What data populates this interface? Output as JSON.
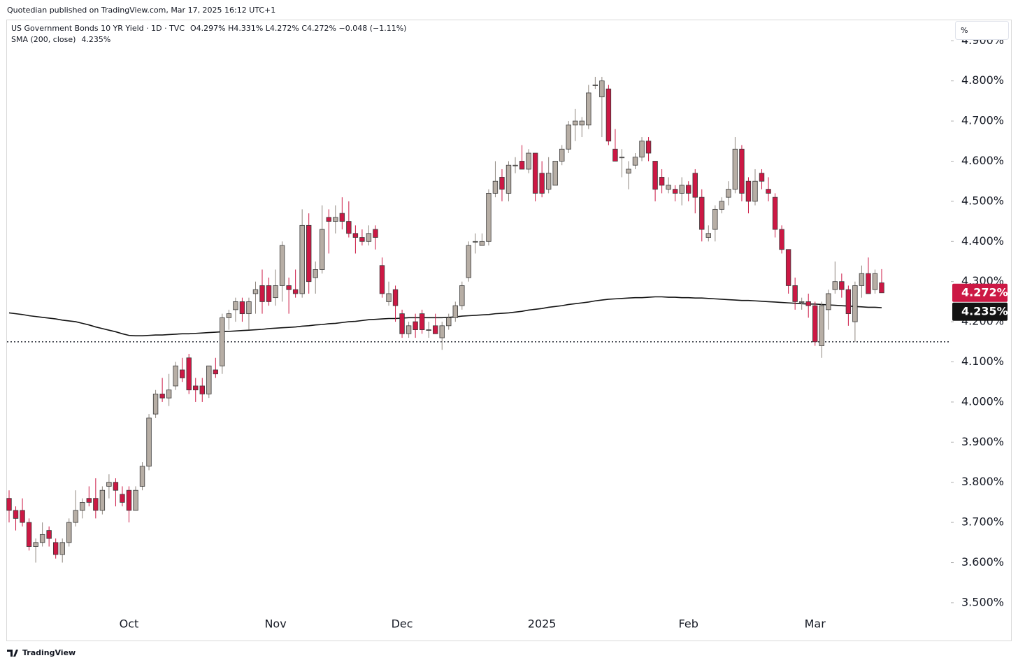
{
  "header": {
    "published": "Quotedian published on TradingView.com, Mar 17, 2025 16:12 UTC+1",
    "ohlc": "O4.297% H4.331% L4.272% C4.272% −0.048 (−1.11%)",
    "unit": "%",
    "footer": "TradingView"
  },
  "chart_data": {
    "type": "candlestick",
    "title": "US Government Bonds 10 YR Yield · 1D · TVC",
    "categories": [
      null,
      null,
      null,
      null,
      null,
      null,
      null,
      null,
      null,
      null,
      null,
      null,
      null,
      null,
      null,
      null,
      null,
      null,
      "Oct",
      null,
      null,
      null,
      null,
      null,
      null,
      null,
      null,
      null,
      null,
      null,
      null,
      null,
      null,
      null,
      null,
      null,
      null,
      null,
      null,
      null,
      "Nov",
      null,
      null,
      null,
      null,
      null,
      null,
      null,
      null,
      null,
      null,
      null,
      null,
      null,
      null,
      null,
      null,
      null,
      null,
      "Dec",
      null,
      null,
      null,
      null,
      null,
      null,
      null,
      null,
      null,
      null,
      null,
      null,
      null,
      null,
      null,
      null,
      null,
      null,
      null,
      null,
      "2025",
      null,
      null,
      null,
      null,
      null,
      null,
      null,
      null,
      null,
      null,
      null,
      null,
      null,
      null,
      null,
      null,
      null,
      null,
      null,
      null,
      null,
      "Feb",
      null,
      null,
      null,
      null,
      null,
      null,
      null,
      null,
      null,
      null,
      null,
      null,
      null,
      null,
      null,
      null,
      null,
      null,
      "Mar",
      null,
      null,
      null,
      null,
      null,
      null,
      null,
      null,
      null,
      null
    ],
    "open": [
      3.76,
      3.73,
      3.73,
      3.7,
      3.64,
      3.65,
      3.68,
      3.65,
      3.62,
      3.65,
      3.7,
      3.73,
      3.76,
      3.76,
      3.73,
      3.79,
      3.8,
      3.77,
      3.78,
      3.73,
      3.79,
      3.84,
      3.97,
      4.02,
      4.01,
      4.04,
      4.08,
      4.11,
      4.04,
      4.04,
      4.02,
      4.08,
      4.09,
      4.21,
      4.23,
      4.25,
      4.22,
      4.27,
      4.29,
      4.29,
      4.26,
      4.29,
      4.29,
      4.28,
      4.27,
      4.44,
      4.31,
      4.33,
      4.46,
      4.45,
      4.47,
      4.45,
      4.42,
      4.41,
      4.4,
      4.43,
      4.34,
      4.25,
      4.28,
      4.22,
      4.17,
      4.2,
      4.22,
      4.18,
      4.19,
      4.16,
      4.19,
      4.21,
      4.24,
      4.31,
      4.4,
      4.39,
      4.4,
      4.52,
      4.56,
      4.52,
      4.59,
      4.6,
      4.58,
      4.62,
      4.57,
      4.53,
      4.54,
      4.6,
      4.63,
      4.69,
      4.69,
      4.69,
      4.79,
      4.76,
      4.78,
      4.63,
      4.61,
      4.57,
      4.59,
      4.61,
      4.65,
      4.6,
      4.56,
      4.53,
      4.53,
      4.52,
      4.54,
      4.57,
      4.51,
      4.41,
      4.43,
      4.48,
      4.51,
      4.53,
      4.63,
      4.55,
      4.5,
      4.57,
      4.53,
      4.51,
      4.43,
      4.38,
      4.29,
      4.25,
      4.25,
      4.24,
      4.14,
      4.23,
      4.28,
      4.3,
      4.28,
      4.2,
      4.29,
      4.32,
      4.28,
      4.297
    ],
    "high": [
      3.78,
      3.74,
      3.76,
      3.71,
      3.66,
      3.7,
      3.69,
      3.66,
      3.66,
      3.71,
      3.78,
      3.76,
      3.79,
      3.81,
      3.79,
      3.82,
      3.81,
      3.79,
      3.79,
      3.79,
      3.85,
      3.97,
      4.03,
      4.06,
      4.07,
      4.1,
      4.11,
      4.12,
      4.06,
      4.06,
      4.09,
      4.11,
      4.22,
      4.23,
      4.26,
      4.26,
      4.26,
      4.3,
      4.33,
      4.31,
      4.33,
      4.4,
      4.31,
      4.33,
      4.48,
      4.47,
      4.35,
      4.49,
      4.48,
      4.49,
      4.51,
      4.5,
      4.44,
      4.43,
      4.44,
      4.44,
      4.36,
      4.3,
      4.29,
      4.23,
      4.2,
      4.22,
      4.23,
      4.2,
      4.22,
      4.2,
      4.22,
      4.25,
      4.3,
      4.4,
      4.42,
      4.42,
      4.53,
      4.6,
      4.58,
      4.6,
      4.61,
      4.64,
      4.63,
      4.62,
      4.6,
      4.61,
      4.6,
      4.64,
      4.7,
      4.73,
      4.71,
      4.79,
      4.81,
      4.81,
      4.79,
      4.68,
      4.63,
      4.6,
      4.62,
      4.66,
      4.66,
      4.6,
      4.58,
      4.56,
      4.54,
      4.56,
      4.55,
      4.58,
      4.53,
      4.44,
      4.49,
      4.51,
      4.55,
      4.66,
      4.64,
      4.56,
      4.58,
      4.58,
      4.56,
      4.52,
      4.44,
      4.38,
      4.31,
      4.26,
      4.27,
      4.25,
      4.25,
      4.28,
      4.35,
      4.32,
      4.29,
      4.3,
      4.34,
      4.36,
      4.33,
      4.331
    ],
    "low": [
      3.7,
      3.68,
      3.69,
      3.63,
      3.6,
      3.64,
      3.64,
      3.61,
      3.6,
      3.64,
      3.69,
      3.71,
      3.74,
      3.71,
      3.72,
      3.76,
      3.74,
      3.74,
      3.7,
      3.73,
      3.78,
      3.83,
      3.96,
      4.0,
      3.99,
      4.03,
      4.05,
      4.02,
      4.0,
      4.0,
      4.01,
      4.06,
      4.07,
      4.18,
      4.2,
      4.2,
      4.18,
      4.22,
      4.22,
      4.24,
      4.24,
      4.25,
      4.22,
      4.26,
      4.26,
      4.27,
      4.27,
      4.32,
      4.37,
      4.42,
      4.43,
      4.41,
      4.37,
      4.39,
      4.39,
      4.38,
      4.26,
      4.24,
      4.2,
      4.16,
      4.16,
      4.16,
      4.17,
      4.16,
      4.17,
      4.13,
      4.18,
      4.2,
      4.23,
      4.3,
      4.37,
      4.39,
      4.39,
      4.51,
      4.5,
      4.5,
      4.57,
      4.58,
      4.57,
      4.5,
      4.51,
      4.52,
      4.54,
      4.59,
      4.62,
      4.65,
      4.66,
      4.68,
      4.78,
      4.66,
      4.64,
      4.6,
      4.56,
      4.53,
      4.58,
      4.6,
      4.6,
      4.5,
      4.52,
      4.52,
      4.5,
      4.49,
      4.5,
      4.47,
      4.4,
      4.4,
      4.4,
      4.47,
      4.49,
      4.52,
      4.5,
      4.47,
      4.49,
      4.53,
      4.5,
      4.41,
      4.37,
      4.27,
      4.23,
      4.23,
      4.21,
      4.14,
      4.11,
      4.18,
      4.27,
      4.26,
      4.19,
      4.15,
      4.26,
      4.27,
      4.27,
      4.272
    ],
    "close": [
      3.73,
      3.71,
      3.7,
      3.64,
      3.65,
      3.67,
      3.66,
      3.62,
      3.65,
      3.7,
      3.73,
      3.75,
      3.75,
      3.73,
      3.78,
      3.8,
      3.78,
      3.75,
      3.73,
      3.78,
      3.84,
      3.96,
      4.02,
      4.01,
      4.03,
      4.09,
      4.06,
      4.03,
      4.03,
      4.02,
      4.09,
      4.07,
      4.21,
      4.22,
      4.25,
      4.22,
      4.25,
      4.28,
      4.25,
      4.25,
      4.29,
      4.39,
      4.28,
      4.27,
      4.44,
      4.3,
      4.33,
      4.43,
      4.45,
      4.46,
      4.45,
      4.42,
      4.41,
      4.4,
      4.42,
      4.41,
      4.27,
      4.27,
      4.24,
      4.17,
      4.19,
      4.18,
      4.18,
      4.18,
      4.17,
      4.19,
      4.21,
      4.24,
      4.29,
      4.39,
      4.4,
      4.4,
      4.52,
      4.55,
      4.53,
      4.59,
      4.59,
      4.58,
      4.62,
      4.52,
      4.52,
      4.57,
      4.6,
      4.63,
      4.69,
      4.7,
      4.7,
      4.77,
      4.79,
      4.8,
      4.65,
      4.6,
      4.61,
      4.58,
      4.61,
      4.65,
      4.62,
      4.53,
      4.54,
      4.54,
      4.52,
      4.54,
      4.52,
      4.51,
      4.43,
      4.42,
      4.48,
      4.5,
      4.53,
      4.63,
      4.52,
      4.5,
      4.55,
      4.55,
      4.52,
      4.43,
      4.38,
      4.29,
      4.25,
      4.25,
      4.24,
      4.15,
      4.24,
      4.27,
      4.3,
      4.28,
      4.22,
      4.29,
      4.32,
      4.27,
      4.32,
      4.272
    ],
    "last_close_label": "4.272%",
    "color_up": "#b7aea5",
    "color_down": "#cc1844",
    "border_color": "#3a3a3a",
    "sma": {
      "name": "SMA (200, close)",
      "color": "#131313",
      "value_label": "4.235%",
      "values": [
        4.222,
        4.22,
        4.218,
        4.215,
        4.213,
        4.211,
        4.209,
        4.207,
        4.204,
        4.202,
        4.2,
        4.196,
        4.192,
        4.187,
        4.183,
        4.179,
        4.175,
        4.17,
        4.166,
        4.165,
        4.165,
        4.166,
        4.167,
        4.167,
        4.168,
        4.169,
        4.17,
        4.17,
        4.171,
        4.172,
        4.173,
        4.174,
        4.175,
        4.176,
        4.177,
        4.178,
        4.179,
        4.18,
        4.181,
        4.183,
        4.184,
        4.185,
        4.186,
        4.187,
        4.189,
        4.19,
        4.192,
        4.193,
        4.195,
        4.196,
        4.198,
        4.2,
        4.201,
        4.203,
        4.205,
        4.206,
        4.207,
        4.208,
        4.208,
        4.209,
        4.21,
        4.21,
        4.21,
        4.21,
        4.21,
        4.21,
        4.211,
        4.212,
        4.214,
        4.215,
        4.216,
        4.217,
        4.218,
        4.22,
        4.221,
        4.222,
        4.224,
        4.226,
        4.229,
        4.231,
        4.233,
        4.236,
        4.238,
        4.24,
        4.243,
        4.245,
        4.247,
        4.249,
        4.252,
        4.254,
        4.256,
        4.257,
        4.258,
        4.259,
        4.26,
        4.26,
        4.261,
        4.262,
        4.262,
        4.261,
        4.261,
        4.26,
        4.26,
        4.259,
        4.259,
        4.258,
        4.257,
        4.256,
        4.255,
        4.254,
        4.253,
        4.253,
        4.252,
        4.251,
        4.25,
        4.249,
        4.248,
        4.247,
        4.246,
        4.245,
        4.244,
        4.244,
        4.243,
        4.242,
        4.241,
        4.24,
        4.239,
        4.238,
        4.237,
        4.236,
        4.236,
        4.235
      ]
    },
    "hline": 4.15,
    "ylim": [
      3.472,
      4.951
    ],
    "yticks": [
      {
        "value": 3.5,
        "label": "3.500%"
      },
      {
        "value": 3.6,
        "label": "3.600%"
      },
      {
        "value": 3.7,
        "label": "3.700%"
      },
      {
        "value": 3.8,
        "label": "3.800%"
      },
      {
        "value": 3.9,
        "label": "3.900%"
      },
      {
        "value": 4.0,
        "label": "4.000%"
      },
      {
        "value": 4.1,
        "label": "4.100%"
      },
      {
        "value": 4.2,
        "label": "4.200%"
      },
      {
        "value": 4.3,
        "label": "4.300%"
      },
      {
        "value": 4.4,
        "label": "4.400%"
      },
      {
        "value": 4.5,
        "label": "4.500%"
      },
      {
        "value": 4.6,
        "label": "4.600%"
      },
      {
        "value": 4.7,
        "label": "4.700%"
      },
      {
        "value": 4.8,
        "label": "4.800%"
      },
      {
        "value": 4.9,
        "label": "4.900%"
      }
    ],
    "grid": false
  }
}
